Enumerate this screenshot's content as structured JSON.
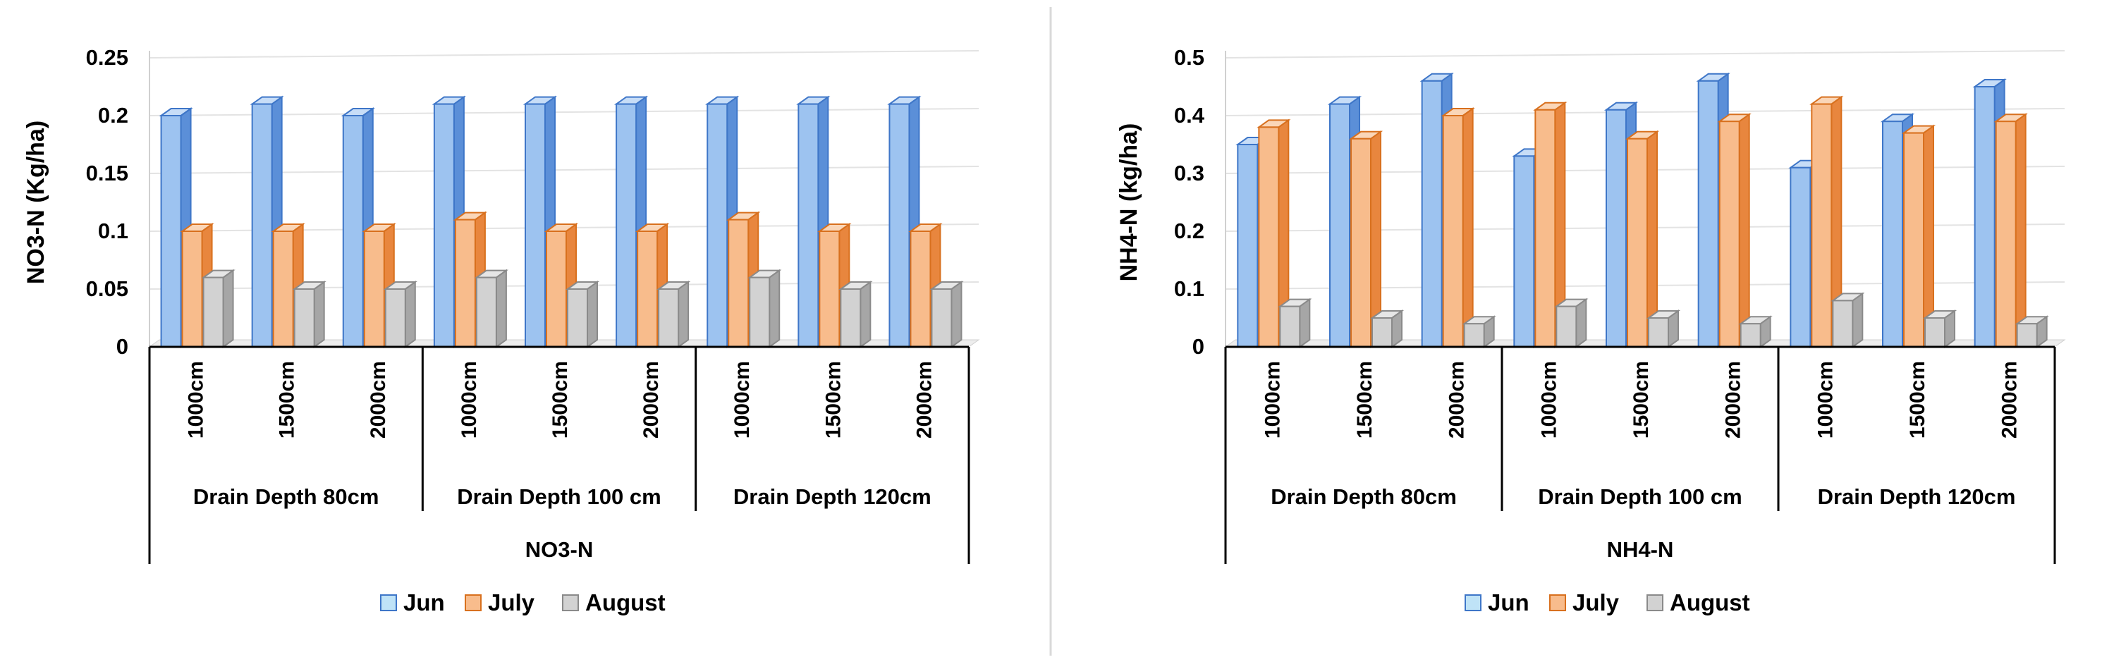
{
  "colors": {
    "jun": {
      "front": "#9DC3F0",
      "side": "#5B8FD8",
      "top": "#C7DDF7",
      "stroke": "#3E76C8"
    },
    "july": {
      "front": "#F8BC8C",
      "side": "#E8863E",
      "top": "#FAD6B8",
      "stroke": "#D8701E"
    },
    "august": {
      "front": "#D2D2D2",
      "side": "#A6A6A6",
      "top": "#E6E6E6",
      "stroke": "#8A8A8A"
    },
    "grid": "#E3E3E3",
    "axis": "#000000"
  },
  "chart_data": [
    {
      "type": "bar",
      "title": "",
      "ylabel": "NO3-N (Kg/ha)",
      "xlabel": "NO3-N",
      "ylim": [
        0,
        0.25
      ],
      "yticks": [
        "0",
        "0.05",
        "0.1",
        "0.15",
        "0.2",
        "0.25"
      ],
      "categories": [
        "1000cm",
        "1500cm",
        "2000cm",
        "1000cm",
        "1500cm",
        "2000cm",
        "1000cm",
        "1500cm",
        "2000cm"
      ],
      "groups": [
        "Drain Depth 80cm",
        "Drain Depth 100 cm",
        "Drain Depth 120cm"
      ],
      "outer_label": "NO3-N",
      "series": [
        {
          "name": "Jun",
          "values": [
            0.2,
            0.21,
            0.2,
            0.21,
            0.21,
            0.21,
            0.21,
            0.21,
            0.21
          ]
        },
        {
          "name": "July",
          "values": [
            0.1,
            0.1,
            0.1,
            0.11,
            0.1,
            0.1,
            0.11,
            0.1,
            0.1
          ]
        },
        {
          "name": "August",
          "values": [
            0.06,
            0.05,
            0.05,
            0.06,
            0.05,
            0.05,
            0.06,
            0.05,
            0.05
          ]
        }
      ],
      "legend": [
        "Jun",
        "July",
        "August"
      ],
      "legend_position": "bottom"
    },
    {
      "type": "bar",
      "title": "",
      "ylabel": "NH4-N (kg/ha)",
      "xlabel": "NH4-N",
      "ylim": [
        0,
        0.5
      ],
      "yticks": [
        "0",
        "0.1",
        "0.2",
        "0.3",
        "0.4",
        "0.5"
      ],
      "categories": [
        "1000cm",
        "1500cm",
        "2000cm",
        "1000cm",
        "1500cm",
        "2000cm",
        "1000cm",
        "1500cm",
        "2000cm"
      ],
      "groups": [
        "Drain Depth 80cm",
        "Drain Depth 100 cm",
        "Drain Depth 120cm"
      ],
      "outer_label": "NH4-N",
      "series": [
        {
          "name": "Jun",
          "values": [
            0.35,
            0.42,
            0.46,
            0.33,
            0.41,
            0.46,
            0.31,
            0.39,
            0.45
          ]
        },
        {
          "name": "July",
          "values": [
            0.38,
            0.36,
            0.4,
            0.41,
            0.36,
            0.39,
            0.42,
            0.37,
            0.39
          ]
        },
        {
          "name": "August",
          "values": [
            0.07,
            0.05,
            0.04,
            0.07,
            0.05,
            0.04,
            0.08,
            0.05,
            0.04
          ]
        }
      ],
      "legend": [
        "Jun",
        "July",
        "August"
      ],
      "legend_position": "bottom"
    }
  ]
}
